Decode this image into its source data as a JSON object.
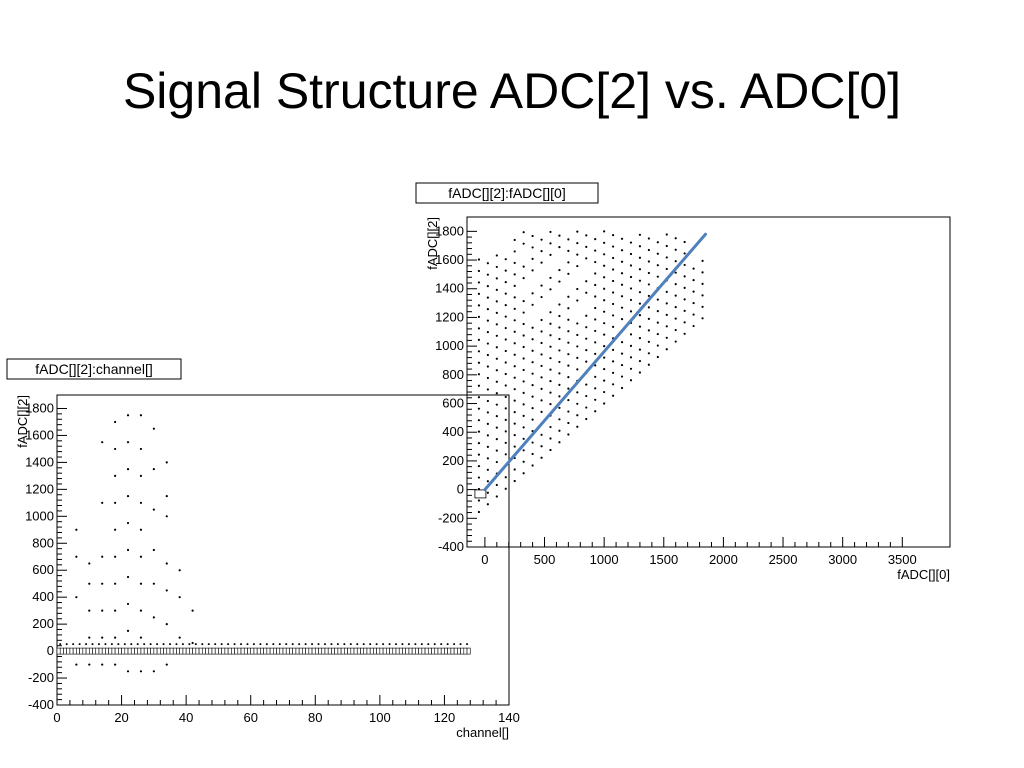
{
  "slide": {
    "title": "Signal Structure ADC[2] vs. ADC[0]"
  },
  "chart_data": [
    {
      "type": "scatter",
      "title": "fADC[][2]:channel[]",
      "xlabel": "channel[]",
      "ylabel": "fADC[][2]",
      "xlim": [
        0,
        140
      ],
      "ylim": [
        -400,
        1900
      ],
      "xticks": [
        "0",
        "20",
        "40",
        "60",
        "80",
        "100",
        "120",
        "140"
      ],
      "yticks": [
        "-400",
        "-200",
        "0",
        "200",
        "400",
        "600",
        "800",
        "1000",
        "1200",
        "1400",
        "1600",
        "1800"
      ],
      "grid": false,
      "points": [
        [
          6,
          900
        ],
        [
          6,
          700
        ],
        [
          6,
          400
        ],
        [
          6,
          -100
        ],
        [
          10,
          650
        ],
        [
          10,
          500
        ],
        [
          10,
          300
        ],
        [
          10,
          100
        ],
        [
          10,
          -100
        ],
        [
          14,
          1550
        ],
        [
          14,
          1100
        ],
        [
          14,
          700
        ],
        [
          14,
          500
        ],
        [
          14,
          300
        ],
        [
          14,
          100
        ],
        [
          14,
          -100
        ],
        [
          18,
          1700
        ],
        [
          18,
          1500
        ],
        [
          18,
          1300
        ],
        [
          18,
          1100
        ],
        [
          18,
          900
        ],
        [
          18,
          700
        ],
        [
          18,
          500
        ],
        [
          18,
          300
        ],
        [
          18,
          100
        ],
        [
          18,
          -100
        ],
        [
          22,
          1750
        ],
        [
          22,
          1550
        ],
        [
          22,
          1350
        ],
        [
          22,
          1150
        ],
        [
          22,
          950
        ],
        [
          22,
          750
        ],
        [
          22,
          550
        ],
        [
          22,
          350
        ],
        [
          22,
          150
        ],
        [
          22,
          -150
        ],
        [
          26,
          1750
        ],
        [
          26,
          1500
        ],
        [
          26,
          1300
        ],
        [
          26,
          1100
        ],
        [
          26,
          900
        ],
        [
          26,
          700
        ],
        [
          26,
          500
        ],
        [
          26,
          300
        ],
        [
          26,
          100
        ],
        [
          26,
          -150
        ],
        [
          30,
          1650
        ],
        [
          30,
          1350
        ],
        [
          30,
          1050
        ],
        [
          30,
          750
        ],
        [
          30,
          500
        ],
        [
          30,
          250
        ],
        [
          30,
          -150
        ],
        [
          34,
          1400
        ],
        [
          34,
          1150
        ],
        [
          34,
          1000
        ],
        [
          34,
          650
        ],
        [
          34,
          450
        ],
        [
          34,
          200
        ],
        [
          34,
          -100
        ],
        [
          38,
          600
        ],
        [
          38,
          400
        ],
        [
          38,
          100
        ],
        [
          42,
          300
        ],
        [
          42,
          60
        ]
      ],
      "boxes": {
        "channels": 128,
        "y": 0
      }
    },
    {
      "type": "scatter",
      "title": "fADC[][2]:fADC[][0]",
      "xlabel": "fADC[][0]",
      "ylabel": "fADC[][2]",
      "xlim": [
        -150,
        3900
      ],
      "ylim": [
        -400,
        1900
      ],
      "xticks": [
        "0",
        "500",
        "1000",
        "1500",
        "2000",
        "2500",
        "3000",
        "3500"
      ],
      "yticks": [
        "-400",
        "-200",
        "0",
        "200",
        "400",
        "600",
        "800",
        "1000",
        "1200",
        "1400",
        "1600",
        "1800"
      ],
      "grid": false,
      "points_region": {
        "lower": [
          [
            -50,
            -250
          ],
          [
            0,
            -100
          ],
          [
            1800,
            1300
          ]
        ],
        "upper": [
          [
            50,
            1700
          ],
          [
            300,
            1800
          ],
          [
            1850,
            1800
          ]
        ]
      },
      "fit_line": {
        "x1": 0,
        "y1": 0,
        "x2": 1850,
        "y2": 1780,
        "color": "#4f81bd"
      },
      "zero_box": {
        "x": -50,
        "y": -30
      }
    }
  ]
}
